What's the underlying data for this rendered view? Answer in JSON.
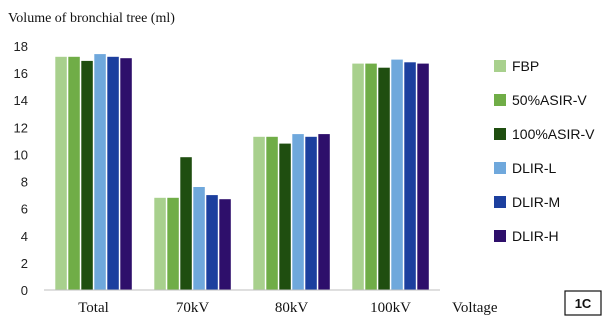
{
  "chart_data": {
    "type": "bar",
    "ylabel": "Volume of bronchial tree (ml)",
    "xlabel": "Voltage",
    "panel_label": "1C",
    "categories": [
      "Total",
      "70kV",
      "80kV",
      "100kV"
    ],
    "ylim": [
      0,
      18
    ],
    "yticks": [
      0,
      2,
      4,
      6,
      8,
      10,
      12,
      14,
      16,
      18
    ],
    "grid": false,
    "legend_position": "right",
    "series": [
      {
        "name": "FBP",
        "color": "#a8d08d",
        "values": [
          17.2,
          6.8,
          11.3,
          16.7
        ]
      },
      {
        "name": "50%ASIR-V",
        "color": "#70ad47",
        "values": [
          17.2,
          6.8,
          11.3,
          16.7
        ]
      },
      {
        "name": "100%ASIR-V",
        "color": "#1f4e10",
        "values": [
          16.9,
          9.8,
          10.8,
          16.4
        ]
      },
      {
        "name": "DLIR-L",
        "color": "#6fa8dc",
        "values": [
          17.4,
          7.6,
          11.5,
          17.0
        ]
      },
      {
        "name": "DLIR-M",
        "color": "#1c3f9e",
        "values": [
          17.2,
          7.0,
          11.3,
          16.8
        ]
      },
      {
        "name": "DLIR-H",
        "color": "#2e0f6b",
        "values": [
          17.1,
          6.7,
          11.5,
          16.7
        ]
      }
    ]
  }
}
